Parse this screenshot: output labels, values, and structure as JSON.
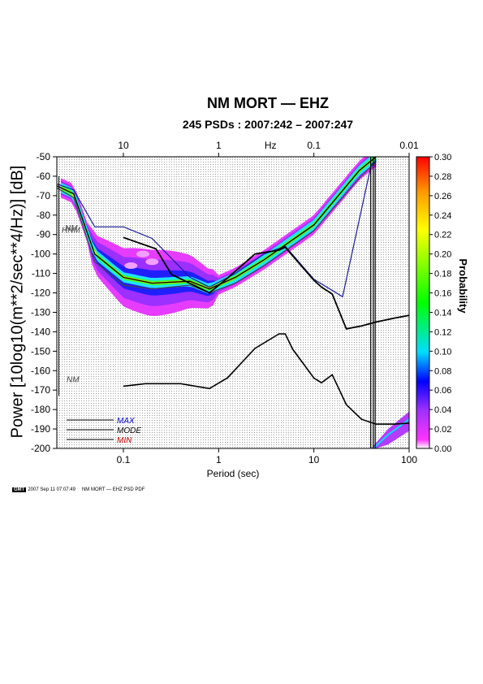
{
  "figure": {
    "title": "NM MORT — EHZ",
    "subtitle": "245 PSDs : 2007:242 – 2007:247",
    "ylabel": "Power [10log10(m**2/sec**4/Hz)] [dB]",
    "footer_logo": "GMT",
    "footer_date": "2007 Sep 11 07:07:49",
    "footer_text": "NM MORT — EHZ PSD PDF"
  },
  "chart_data": {
    "type": "heatmap",
    "title": "NM MORT — EHZ",
    "subtitle": "245 PSDs : 2007:242 – 2007:247",
    "xlabel": "Period (sec)",
    "x2label": "Hz",
    "ylabel": "Power [10log10(m**2/sec**4/Hz)] [dB]",
    "x_scale": "log",
    "xlim": [
      0.02,
      100
    ],
    "ylim": [
      -200,
      -50
    ],
    "x_ticks": [
      {
        "v": 0.1,
        "label": "0.1"
      },
      {
        "v": 1,
        "label": "1"
      },
      {
        "v": 10,
        "label": "10"
      },
      {
        "v": 100,
        "label": "100"
      }
    ],
    "x2_ticks": [
      {
        "v": 0.1,
        "label": "10"
      },
      {
        "v": 1,
        "label": "1"
      },
      {
        "v": 10,
        "label": "0.1"
      },
      {
        "v": 100,
        "label": "0.01"
      }
    ],
    "y_ticks": [
      -50,
      -60,
      -70,
      -80,
      -90,
      -100,
      -110,
      -120,
      -130,
      -140,
      -150,
      -160,
      -170,
      -180,
      -190,
      -200
    ],
    "grid": true,
    "colorbar": {
      "label": "Probability",
      "range": [
        0,
        0.3
      ],
      "ticks": [
        "0.00",
        "0.02",
        "0.04",
        "0.06",
        "0.08",
        "0.10",
        "0.12",
        "0.14",
        "0.16",
        "0.18",
        "0.20",
        "0.22",
        "0.24",
        "0.26",
        "0.28",
        "0.30"
      ]
    },
    "legend": {
      "placement": "bottom-left",
      "entries": [
        {
          "label": "MAX",
          "color": "#0000cc"
        },
        {
          "label": "MODE",
          "color": "#000000"
        },
        {
          "label": "MIN",
          "color": "#cc0000"
        }
      ]
    },
    "annotations": [
      "HNM",
      "NM",
      "NM"
    ],
    "series": [
      {
        "name": "MAX",
        "x": [
          0.02,
          0.03,
          0.05,
          0.1,
          0.2,
          0.5,
          0.8,
          1.5,
          3,
          5,
          10,
          20,
          40,
          45
        ],
        "y": [
          -64,
          -67,
          -86,
          -86,
          -92,
          -112,
          -117,
          -110,
          -100,
          -96,
          -113,
          -122,
          -54,
          -52
        ]
      },
      {
        "name": "MODE",
        "x": [
          0.02,
          0.03,
          0.05,
          0.1,
          0.2,
          0.5,
          0.8,
          1.5,
          3,
          10,
          30,
          40,
          45
        ],
        "y": [
          -65,
          -69,
          -100,
          -112,
          -115,
          -114,
          -118,
          -112,
          -103,
          -85,
          -57,
          -52,
          -50
        ]
      },
      {
        "name": "MIN",
        "x": [
          0.02,
          0.03,
          0.05,
          0.1,
          0.2,
          0.5,
          0.8,
          1.5,
          3,
          10,
          30,
          40,
          45
        ],
        "y": [
          -66,
          -71,
          -104,
          -116,
          -118,
          -116,
          -120,
          -115,
          -106,
          -88,
          -61,
          -55,
          -52
        ]
      },
      {
        "name": "NHNM",
        "x": [
          0.1,
          0.22,
          0.32,
          0.8,
          1.2,
          2.4,
          4.3,
          5,
          6,
          10,
          12,
          15.6,
          21.9,
          31.6,
          45,
          70,
          101
        ],
        "y": [
          -91.5,
          -97.4,
          -110.5,
          -120,
          -113,
          -100,
          -98,
          -96.5,
          -101,
          -113.5,
          -117,
          -120.6,
          -138.5,
          -137,
          -135,
          -133,
          -131.5
        ]
      },
      {
        "name": "NLNM",
        "x": [
          0.1,
          0.17,
          0.4,
          0.8,
          1.24,
          2.4,
          4.3,
          5,
          6,
          10,
          12,
          15.6,
          21.9,
          31.6,
          45,
          70,
          101
        ],
        "y": [
          -168,
          -166.7,
          -166.7,
          -169.2,
          -163.7,
          -148.6,
          -141.1,
          -141.1,
          -149,
          -163.8,
          -166.2,
          -162.1,
          -177.5,
          -185,
          -187.5,
          -187.5,
          -187
        ]
      }
    ]
  }
}
